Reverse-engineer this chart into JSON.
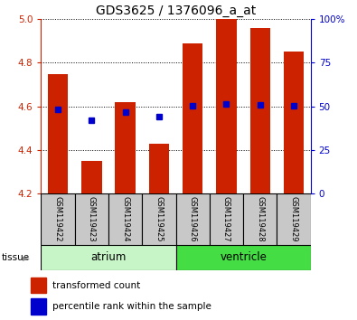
{
  "title": "GDS3625 / 1376096_a_at",
  "samples": [
    "GSM119422",
    "GSM119423",
    "GSM119424",
    "GSM119425",
    "GSM119426",
    "GSM119427",
    "GSM119428",
    "GSM119429"
  ],
  "transformed_count": [
    4.75,
    4.35,
    4.62,
    4.43,
    4.89,
    5.0,
    4.96,
    4.85
  ],
  "percentile_rank": [
    4.585,
    4.535,
    4.575,
    4.555,
    4.602,
    4.613,
    4.608,
    4.602
  ],
  "ylim_left": [
    4.2,
    5.0
  ],
  "ylim_right": [
    0,
    100
  ],
  "yticks_left": [
    4.2,
    4.4,
    4.6,
    4.8,
    5.0
  ],
  "yticks_right": [
    0,
    25,
    50,
    75,
    100
  ],
  "yticklabels_right": [
    "0",
    "25",
    "50",
    "75",
    "100%"
  ],
  "ybase": 4.2,
  "tissue_groups": [
    {
      "label": "atrium",
      "start": 0,
      "end": 4,
      "color": "#C8F5C8"
    },
    {
      "label": "ventricle",
      "start": 4,
      "end": 8,
      "color": "#44DD44"
    }
  ],
  "bar_color": "#CC2200",
  "dot_color": "#0000CC",
  "grid_color": "#000000",
  "axis_left_color": "#CC2200",
  "axis_right_color": "#0000CC",
  "sample_bg_color": "#C8C8C8",
  "tissue_label": "tissue",
  "legend_items": [
    {
      "color": "#CC2200",
      "label": "transformed count"
    },
    {
      "color": "#0000CC",
      "label": "percentile rank within the sample"
    }
  ]
}
